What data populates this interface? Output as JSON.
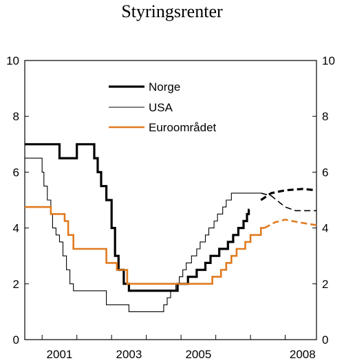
{
  "chart_data": {
    "type": "line",
    "title": "Styringsrenter",
    "ylim": [
      0,
      10
    ],
    "xlim": [
      2000.5,
      2008.9
    ],
    "y_ticks": [
      0,
      2,
      4,
      6,
      8,
      10
    ],
    "y_tick_labels": [
      "0",
      "2",
      "4",
      "6",
      "8",
      "10"
    ],
    "x_ticks": [
      2001,
      2002,
      2003,
      2004,
      2005,
      2006,
      2007,
      2008
    ],
    "x_tick_labels": [
      {
        "x": 2001,
        "label": "2001"
      },
      {
        "x": 2003,
        "label": "2003"
      },
      {
        "x": 2005,
        "label": "2005"
      },
      {
        "x": 2008,
        "label": "2008"
      }
    ],
    "grid": false,
    "legend_position": "top-left",
    "series": [
      {
        "name": "Norge",
        "color": "#000000",
        "style": "thick",
        "step": true,
        "points": [
          [
            2000.5,
            7.0
          ],
          [
            2001.5,
            6.5
          ],
          [
            2002.0,
            7.0
          ],
          [
            2002.5,
            6.5
          ],
          [
            2002.6,
            6.0
          ],
          [
            2002.7,
            5.5
          ],
          [
            2002.85,
            5.0
          ],
          [
            2003.0,
            4.0
          ],
          [
            2003.1,
            3.0
          ],
          [
            2003.2,
            2.5
          ],
          [
            2003.35,
            2.0
          ],
          [
            2003.5,
            1.75
          ],
          [
            2004.9,
            2.0
          ],
          [
            2005.2,
            2.25
          ],
          [
            2005.45,
            2.5
          ],
          [
            2005.7,
            2.75
          ],
          [
            2005.85,
            3.0
          ],
          [
            2006.1,
            3.25
          ],
          [
            2006.35,
            3.5
          ],
          [
            2006.5,
            3.75
          ],
          [
            2006.65,
            4.0
          ],
          [
            2006.8,
            4.25
          ],
          [
            2006.9,
            4.5
          ],
          [
            2006.95,
            4.65
          ]
        ],
        "end_x": 2006.97
      },
      {
        "name": "USA",
        "color": "#000000",
        "style": "thin",
        "step": true,
        "points": [
          [
            2000.5,
            6.5
          ],
          [
            2001.0,
            6.0
          ],
          [
            2001.05,
            5.5
          ],
          [
            2001.15,
            5.0
          ],
          [
            2001.25,
            4.5
          ],
          [
            2001.3,
            4.0
          ],
          [
            2001.4,
            3.75
          ],
          [
            2001.5,
            3.5
          ],
          [
            2001.6,
            3.0
          ],
          [
            2001.7,
            2.5
          ],
          [
            2001.8,
            2.0
          ],
          [
            2001.9,
            1.75
          ],
          [
            2002.85,
            1.25
          ],
          [
            2003.5,
            1.0
          ],
          [
            2004.5,
            1.25
          ],
          [
            2004.6,
            1.5
          ],
          [
            2004.7,
            1.75
          ],
          [
            2004.85,
            2.0
          ],
          [
            2004.95,
            2.25
          ],
          [
            2005.05,
            2.5
          ],
          [
            2005.15,
            2.75
          ],
          [
            2005.3,
            3.0
          ],
          [
            2005.45,
            3.25
          ],
          [
            2005.55,
            3.5
          ],
          [
            2005.7,
            3.75
          ],
          [
            2005.8,
            4.0
          ],
          [
            2005.95,
            4.25
          ],
          [
            2006.05,
            4.5
          ],
          [
            2006.2,
            4.75
          ],
          [
            2006.3,
            5.0
          ],
          [
            2006.45,
            5.25
          ]
        ],
        "end_x": 2007.3
      },
      {
        "name": "Euroområdet",
        "color": "#e07a1f",
        "style": "medium",
        "step": true,
        "points": [
          [
            2000.5,
            4.75
          ],
          [
            2001.25,
            4.5
          ],
          [
            2001.65,
            4.25
          ],
          [
            2001.75,
            3.75
          ],
          [
            2001.9,
            3.25
          ],
          [
            2002.85,
            2.75
          ],
          [
            2003.15,
            2.5
          ],
          [
            2003.45,
            2.0
          ],
          [
            2005.9,
            2.25
          ],
          [
            2006.15,
            2.5
          ],
          [
            2006.3,
            2.75
          ],
          [
            2006.45,
            3.0
          ],
          [
            2006.6,
            3.25
          ],
          [
            2006.85,
            3.5
          ],
          [
            2007.0,
            3.75
          ],
          [
            2007.3,
            4.0
          ]
        ],
        "end_x": 2007.4
      }
    ],
    "forecasts": [
      {
        "series": "Norge",
        "points": [
          [
            2007.3,
            5.0
          ],
          [
            2007.6,
            5.25
          ],
          [
            2008.0,
            5.35
          ],
          [
            2008.5,
            5.4
          ],
          [
            2008.9,
            5.35
          ]
        ]
      },
      {
        "series": "USA",
        "points": [
          [
            2007.3,
            5.25
          ],
          [
            2007.6,
            5.15
          ],
          [
            2008.0,
            4.75
          ],
          [
            2008.3,
            4.62
          ],
          [
            2008.9,
            4.62
          ]
        ]
      },
      {
        "series": "Euroområdet",
        "points": [
          [
            2007.4,
            4.0
          ],
          [
            2007.7,
            4.2
          ],
          [
            2008.0,
            4.3
          ],
          [
            2008.4,
            4.2
          ],
          [
            2008.9,
            4.1
          ]
        ]
      }
    ]
  }
}
